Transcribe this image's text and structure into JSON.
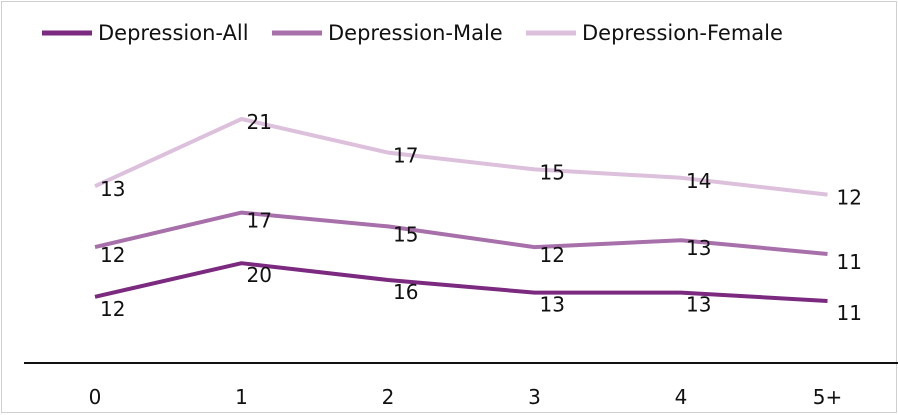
{
  "chart_data": {
    "type": "line",
    "title": "",
    "xlabel": "",
    "ylabel": "",
    "categories": [
      "0",
      "1",
      "2",
      "3",
      "4",
      "5+"
    ],
    "legend_position": "top",
    "grid": false,
    "series": [
      {
        "name": "Depression-All",
        "values": [
          12,
          20,
          16,
          13,
          13,
          11
        ],
        "color": "#7b2a80"
      },
      {
        "name": "Depression-Male",
        "values": [
          12,
          17,
          15,
          12,
          13,
          11
        ],
        "color": "#a870aa"
      },
      {
        "name": "Depression-Female",
        "values": [
          13,
          21,
          17,
          15,
          14,
          12
        ],
        "color": "#dcc0dc"
      }
    ]
  },
  "colors": {
    "axis": "#111111",
    "text": "#111111",
    "border": "#cfcfcf"
  }
}
